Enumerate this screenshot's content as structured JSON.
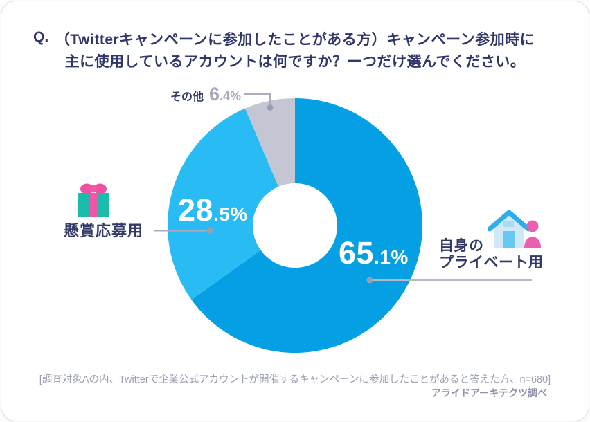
{
  "header": {
    "q": "Q.",
    "title_line1": "（Twitterキャンペーンに参加したことがある方）キャンペーン参加時に",
    "title_line2": "主に使用しているアカウントは何ですか？一つだけ選んでください。"
  },
  "chart_data": {
    "type": "pie",
    "subtype": "donut",
    "title": "（Twitterキャンペーンに参加したことがある方）キャンペーン参加時に主に使用しているアカウントは何ですか？一つだけ選んでください。",
    "slices": [
      {
        "label": "自身のプライベート用",
        "value": 65.1,
        "color": "#05a0e3"
      },
      {
        "label": "懸賞応募用",
        "value": 28.5,
        "color": "#29bcf4"
      },
      {
        "label": "その他",
        "value": 6.4,
        "color": "#c5c6d4"
      }
    ],
    "start_angle_deg": 0,
    "direction": "clockwise",
    "inner_radius_ratio": 0.33,
    "value_format": "percent",
    "n": 680
  },
  "callouts": {
    "other": {
      "label": "その他"
    },
    "prize": {
      "label": "懸賞応募用"
    },
    "private": {
      "label_line1": "自身の",
      "label_line2": "プライベート用"
    }
  },
  "footer": {
    "note": "[調査対象Aの内、Twitterで企業公式アカウントが開催するキャンペーンに参加したことがあると答えた方、n=680]",
    "source": "アライドアーキテクツ調べ"
  },
  "colors": {
    "title_text": "#2f366a",
    "callout_text": "#333a68",
    "muted_text": "#9ca0b5",
    "leader_line": "#aaadc0",
    "leader_dot": "#9b9eb2"
  }
}
